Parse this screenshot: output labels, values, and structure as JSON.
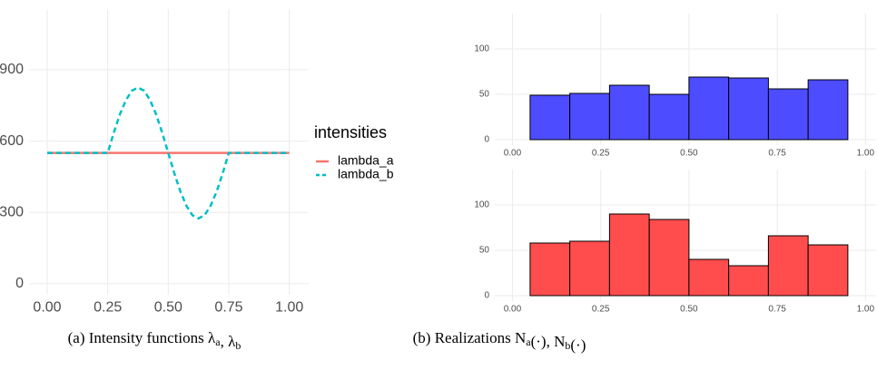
{
  "chart_data": [
    {
      "type": "line",
      "legend_title": "intensities",
      "grid": true,
      "x": [
        0,
        0.25,
        0.275,
        0.3,
        0.325,
        0.35,
        0.375,
        0.4,
        0.425,
        0.45,
        0.475,
        0.5,
        0.525,
        0.55,
        0.575,
        0.6,
        0.625,
        0.65,
        0.675,
        0.7,
        0.725,
        0.75,
        1
      ],
      "series": [
        {
          "name": "lambda_a",
          "color": "#f8766d",
          "dash": false,
          "values": [
            550,
            550,
            550,
            550,
            550,
            550,
            550,
            550,
            550,
            550,
            550,
            550,
            550,
            550,
            550,
            550,
            550,
            550,
            550,
            550,
            550,
            550,
            550
          ]
        },
        {
          "name": "lambda_b",
          "color": "#00bfc4",
          "dash": true,
          "values": [
            550,
            550,
            635,
            712,
            772,
            812,
            825,
            812,
            772,
            712,
            635,
            550,
            465,
            388,
            328,
            288,
            275,
            288,
            328,
            388,
            465,
            550,
            550
          ]
        }
      ],
      "xlim": [
        -0.075,
        1.08
      ],
      "ylim": [
        -46,
        1155
      ],
      "xticks": [
        {
          "value": 0,
          "label": "0.00"
        },
        {
          "value": 0.25,
          "label": "0.25"
        },
        {
          "value": 0.5,
          "label": "0.50"
        },
        {
          "value": 0.75,
          "label": "0.75"
        },
        {
          "value": 1,
          "label": "1.00"
        }
      ],
      "yticks": [
        0,
        300,
        600,
        900
      ],
      "caption": [
        {
          "text": "(a) Intensity functions λ",
          "sub": "a"
        },
        {
          "text": ", λ",
          "sub": "b"
        }
      ]
    },
    {
      "type": "histogram",
      "color": "#4d4dff",
      "grid": true,
      "bins": [
        0.05,
        0.1625,
        0.275,
        0.3875,
        0.5,
        0.6125,
        0.725,
        0.8375,
        0.95
      ],
      "values": [
        49,
        51,
        60,
        50,
        69,
        68,
        56,
        66
      ],
      "xlim": [
        -0.05,
        1.03
      ],
      "ylim": [
        -6,
        139
      ],
      "xticks": [
        {
          "value": 0,
          "label": "0.00"
        },
        {
          "value": 0.25,
          "label": "0.25"
        },
        {
          "value": 0.5,
          "label": "0.50"
        },
        {
          "value": 0.75,
          "label": "0.75"
        },
        {
          "value": 1,
          "label": "1.00"
        }
      ],
      "yticks": [
        0,
        50,
        100
      ]
    },
    {
      "type": "histogram",
      "color": "#ff4d4d",
      "grid": true,
      "bins": [
        0.05,
        0.1625,
        0.275,
        0.3875,
        0.5,
        0.6125,
        0.725,
        0.8375,
        0.95
      ],
      "values": [
        58,
        60,
        90,
        84,
        40,
        33,
        66,
        56
      ],
      "xlim": [
        -0.05,
        1.03
      ],
      "ylim": [
        -6,
        139
      ],
      "xticks": [
        {
          "value": 0,
          "label": "0.00"
        },
        {
          "value": 0.25,
          "label": "0.25"
        },
        {
          "value": 0.5,
          "label": "0.50"
        },
        {
          "value": 0.75,
          "label": "0.75"
        },
        {
          "value": 1,
          "label": "1.00"
        }
      ],
      "yticks": [
        0,
        50,
        100
      ],
      "caption": [
        {
          "text": "(b) Realizations N",
          "sub": "a"
        },
        {
          "text": "(·), N",
          "sub": "b"
        },
        {
          "text": "(·)"
        }
      ]
    }
  ]
}
